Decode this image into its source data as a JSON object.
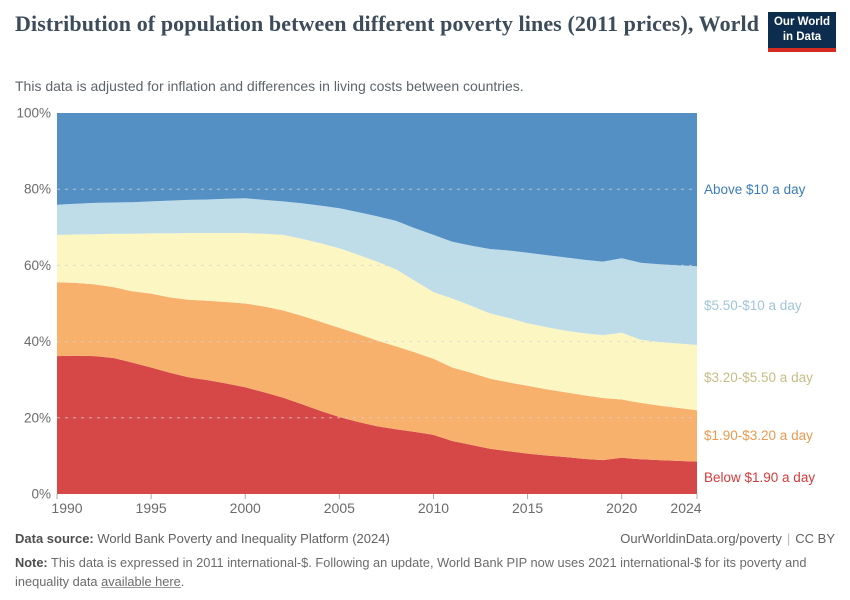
{
  "header": {
    "title": "Distribution of population between different poverty lines (2011 prices), World",
    "subtitle": "This data is adjusted for inflation and differences in living costs between countries."
  },
  "logo": {
    "line1": "Our World",
    "line2": "in Data",
    "bg_color": "#0c2d4e",
    "accent_color": "#d42b21"
  },
  "chart_data": {
    "type": "area",
    "stacked": true,
    "percent_scale": true,
    "title": "Distribution of population between different poverty lines (2011 prices), World",
    "xlabel": "",
    "ylabel": "",
    "ylim": [
      0,
      100
    ],
    "grid": "horizontal dashed at 20/40/60/80",
    "legend_position": "right-of-plot, aligned to band midpoints at last year",
    "x": [
      1990,
      1991,
      1992,
      1993,
      1994,
      1995,
      1996,
      1997,
      1998,
      1999,
      2000,
      2001,
      2002,
      2003,
      2004,
      2005,
      2006,
      2007,
      2008,
      2009,
      2010,
      2011,
      2012,
      2013,
      2014,
      2015,
      2016,
      2017,
      2018,
      2019,
      2020,
      2021,
      2022,
      2023,
      2024
    ],
    "y_ticks": [
      0,
      20,
      40,
      60,
      80,
      100
    ],
    "x_ticks": [
      1990,
      1995,
      2000,
      2005,
      2010,
      2015,
      2020,
      2024
    ],
    "series": [
      {
        "id": "below-1-90",
        "name": "Below $1.90 a day",
        "color": "#d64848",
        "label_color": "#d73a3a",
        "values": [
          36.2,
          36.3,
          36.2,
          35.7,
          34.5,
          33.2,
          31.8,
          30.6,
          29.9,
          29.0,
          28.0,
          26.7,
          25.3,
          23.6,
          21.8,
          20.2,
          18.9,
          17.8,
          17.0,
          16.3,
          15.5,
          13.9,
          12.9,
          11.9,
          11.2,
          10.6,
          10.1,
          9.7,
          9.2,
          8.9,
          9.5,
          9.1,
          8.9,
          8.7,
          8.5
        ]
      },
      {
        "id": "1-90-3-20",
        "name": "$1.90-$3.20 a day",
        "color": "#f7b16d",
        "label_color": "#e89a50",
        "values": [
          19.4,
          19.1,
          18.8,
          18.6,
          18.7,
          19.4,
          19.8,
          20.4,
          20.8,
          21.4,
          22.0,
          22.5,
          22.9,
          23.2,
          23.4,
          23.4,
          23.1,
          22.5,
          21.8,
          20.9,
          20.0,
          19.3,
          18.9,
          18.4,
          18.1,
          17.8,
          17.4,
          17.0,
          16.7,
          16.3,
          15.3,
          14.8,
          14.3,
          13.9,
          13.5
        ]
      },
      {
        "id": "3-20-5-50",
        "name": "$3.20-$5.50 a day",
        "color": "#fcf6c3",
        "label_color": "#c6bd85",
        "values": [
          12.4,
          12.7,
          13.2,
          14.0,
          15.1,
          15.8,
          16.8,
          17.5,
          17.8,
          18.1,
          18.5,
          19.1,
          19.8,
          20.2,
          20.6,
          20.9,
          20.8,
          20.7,
          20.2,
          18.8,
          17.5,
          18.1,
          17.6,
          17.1,
          16.9,
          16.4,
          16.3,
          16.2,
          16.3,
          16.5,
          17.5,
          16.6,
          16.7,
          16.9,
          17.1
        ]
      },
      {
        "id": "5-50-10",
        "name": "$5.50-$10 a day",
        "color": "#bfdde9",
        "label_color": "#a0c5d6",
        "values": [
          7.9,
          8.1,
          8.2,
          8.2,
          8.3,
          8.4,
          8.6,
          8.7,
          8.8,
          9.0,
          9.1,
          8.9,
          8.8,
          9.3,
          9.9,
          10.5,
          11.2,
          11.9,
          12.7,
          13.8,
          15.0,
          14.9,
          15.8,
          16.9,
          17.7,
          18.5,
          18.9,
          19.2,
          19.3,
          19.3,
          19.6,
          20.2,
          20.4,
          20.5,
          20.7
        ]
      },
      {
        "id": "above-10",
        "name": "Above $10 a day",
        "color": "#5590c5",
        "label_color": "#3b7cba",
        "values": [
          24.1,
          23.8,
          23.6,
          23.5,
          23.4,
          23.2,
          23.0,
          22.8,
          22.7,
          22.5,
          22.4,
          22.8,
          23.2,
          23.7,
          24.3,
          25.0,
          26.0,
          27.1,
          28.3,
          30.2,
          32.0,
          33.8,
          34.8,
          35.7,
          36.1,
          36.7,
          37.3,
          37.9,
          38.5,
          39.0,
          38.1,
          39.3,
          39.7,
          40.0,
          40.2
        ]
      }
    ]
  },
  "footer": {
    "data_source_label": "Data source:",
    "data_source_value": " World Bank Poverty and Inequality Platform (2024)",
    "cite_url": "OurWorldinData.org/poverty",
    "license": "CC BY",
    "note_label": "Note:",
    "note_text": " This data is expressed in 2011 international-$. Following an update, World Bank PIP now uses 2021 international-$ for its poverty and inequality data ",
    "note_link": "available here",
    "note_suffix": "."
  }
}
